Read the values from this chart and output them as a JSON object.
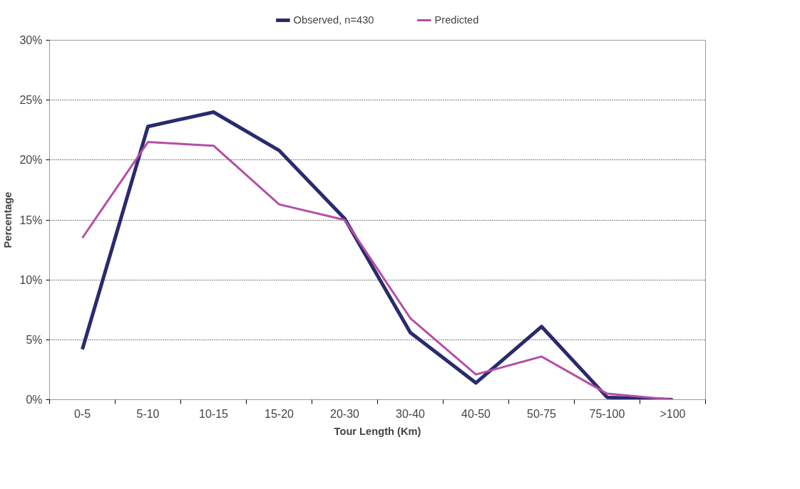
{
  "chart_data": {
    "type": "line",
    "xlabel": "Tour Length (Km)",
    "ylabel": "Percentage",
    "categories": [
      "0-5",
      "5-10",
      "10-15",
      "15-20",
      "20-30",
      "30-40",
      "40-50",
      "50-75",
      "75-100",
      ">100"
    ],
    "series": [
      {
        "name": "Observed, n=430",
        "color": "#2a2a6e",
        "values": [
          4.2,
          22.8,
          24.0,
          20.8,
          15.1,
          5.6,
          1.4,
          6.1,
          0.2,
          0
        ]
      },
      {
        "name": "Predicted",
        "color": "#b44fa6",
        "values": [
          13.5,
          21.5,
          21.2,
          16.3,
          15.0,
          6.8,
          2.1,
          3.6,
          0.5,
          0
        ]
      }
    ],
    "ylim": [
      0,
      30
    ],
    "yticks": [
      {
        "value": 0,
        "label": "0%"
      },
      {
        "value": 5,
        "label": "5%"
      },
      {
        "value": 10,
        "label": "10%"
      },
      {
        "value": 15,
        "label": "15%"
      },
      {
        "value": 20,
        "label": "20%"
      },
      {
        "value": 25,
        "label": "25%"
      },
      {
        "value": 30,
        "label": "30%"
      }
    ],
    "grid": "y",
    "legend": "top",
    "marker": "none",
    "line_style": "solid"
  }
}
